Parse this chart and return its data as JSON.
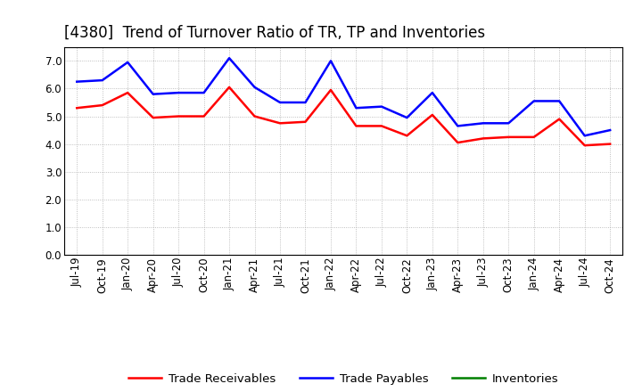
{
  "title": "[4380]  Trend of Turnover Ratio of TR, TP and Inventories",
  "x_labels": [
    "Jul-19",
    "Oct-19",
    "Jan-20",
    "Apr-20",
    "Jul-20",
    "Oct-20",
    "Jan-21",
    "Apr-21",
    "Jul-21",
    "Oct-21",
    "Jan-22",
    "Apr-22",
    "Jul-22",
    "Oct-22",
    "Jan-23",
    "Apr-23",
    "Jul-23",
    "Oct-23",
    "Jan-24",
    "Apr-24",
    "Jul-24",
    "Oct-24"
  ],
  "trade_receivables": [
    5.3,
    5.4,
    5.85,
    4.95,
    5.0,
    5.0,
    6.05,
    5.0,
    4.75,
    4.8,
    5.95,
    4.65,
    4.65,
    4.3,
    5.05,
    4.05,
    4.2,
    4.25,
    4.25,
    4.9,
    3.95,
    4.0
  ],
  "trade_payables": [
    6.25,
    6.3,
    6.95,
    5.8,
    5.85,
    5.85,
    7.1,
    6.05,
    5.5,
    5.5,
    7.0,
    5.3,
    5.35,
    4.95,
    5.85,
    4.65,
    4.75,
    4.75,
    5.55,
    5.55,
    4.3,
    4.5
  ],
  "ylim": [
    0.0,
    7.5
  ],
  "yticks": [
    0.0,
    1.0,
    2.0,
    3.0,
    4.0,
    5.0,
    6.0,
    7.0
  ],
  "colors": {
    "trade_receivables": "#ff0000",
    "trade_payables": "#0000ff",
    "inventories": "#008000"
  },
  "legend_labels": [
    "Trade Receivables",
    "Trade Payables",
    "Inventories"
  ],
  "background_color": "#ffffff",
  "grid_color": "#999999",
  "title_fontsize": 12,
  "tick_fontsize": 8.5,
  "legend_fontsize": 9.5
}
